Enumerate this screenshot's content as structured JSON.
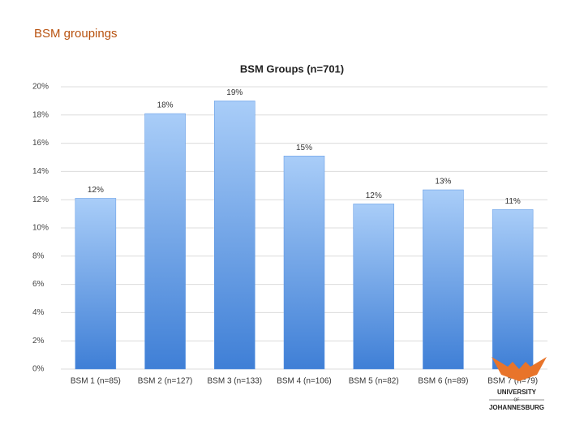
{
  "heading": "BSM groupings",
  "logo": {
    "line1": "UNIVERSITY",
    "line2": "OF",
    "line3": "JOHANNESBURG"
  },
  "chart_data": {
    "type": "bar",
    "title": "BSM Groups (n=701)",
    "categories": [
      "BSM 1 (n=85)",
      "BSM 2 (n=127)",
      "BSM 3 (n=133)",
      "BSM 4 (n=106)",
      "BSM 5 (n=82)",
      "BSM 6 (n=89)",
      "BSM 7 (n=79)"
    ],
    "values": [
      12.1,
      18.1,
      19.0,
      15.1,
      11.7,
      12.7,
      11.3
    ],
    "value_labels": [
      "12%",
      "18%",
      "19%",
      "15%",
      "12%",
      "13%",
      "11%"
    ],
    "color": "#5a95e3",
    "ylim": [
      0,
      20
    ],
    "yticks": [
      {
        "value": 0,
        "label": "0%"
      },
      {
        "value": 2,
        "label": "2%"
      },
      {
        "value": 4,
        "label": "4%"
      },
      {
        "value": 6,
        "label": "6%"
      },
      {
        "value": 8,
        "label": "8%"
      },
      {
        "value": 10,
        "label": "10%"
      },
      {
        "value": 12,
        "label": "12%"
      },
      {
        "value": 14,
        "label": "14%"
      },
      {
        "value": 16,
        "label": "16%"
      },
      {
        "value": 18,
        "label": "18%"
      },
      {
        "value": 20,
        "label": "20%"
      }
    ],
    "grid": true
  }
}
